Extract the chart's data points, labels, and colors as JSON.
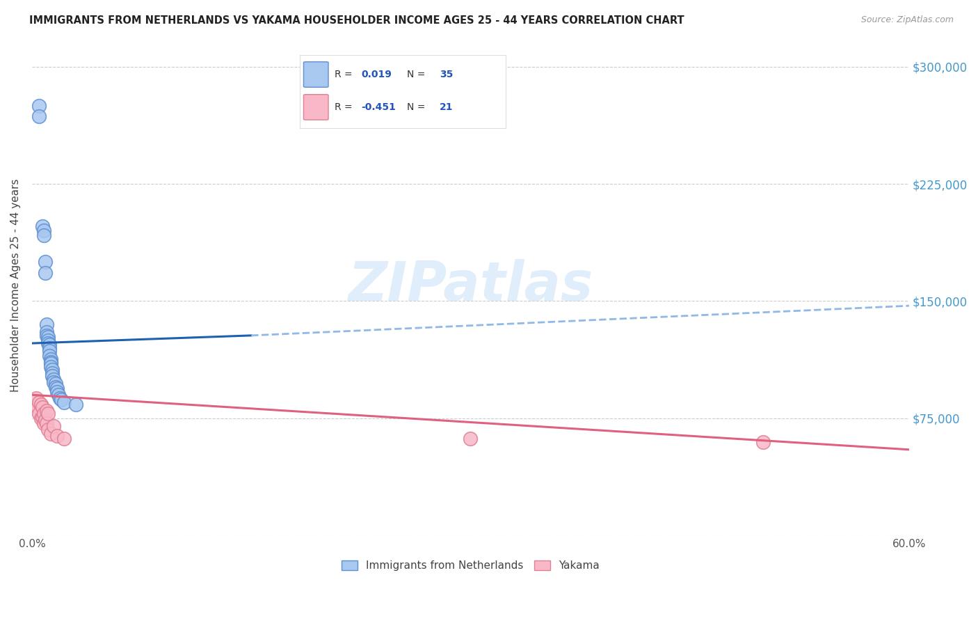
{
  "title": "IMMIGRANTS FROM NETHERLANDS VS YAKAMA HOUSEHOLDER INCOME AGES 25 - 44 YEARS CORRELATION CHART",
  "source": "Source: ZipAtlas.com",
  "ylabel": "Householder Income Ages 25 - 44 years",
  "xlim": [
    0.0,
    0.6
  ],
  "ylim": [
    0,
    320000
  ],
  "yticks": [
    0,
    75000,
    150000,
    225000,
    300000
  ],
  "ytick_labels_right": [
    "",
    "$75,000",
    "$150,000",
    "$225,000",
    "$300,000"
  ],
  "xticks": [
    0.0,
    0.1,
    0.2,
    0.3,
    0.4,
    0.5,
    0.6
  ],
  "xtick_labels": [
    "0.0%",
    "",
    "",
    "",
    "",
    "",
    "60.0%"
  ],
  "netherlands_color": "#A8C8F0",
  "yakama_color": "#F8B8C8",
  "netherlands_edge": "#6090D0",
  "yakama_edge": "#E08090",
  "netherlands_line_color": "#2060B0",
  "yakama_line_color": "#E06080",
  "trendline_dash_color": "#90B8E8",
  "background_color": "#FFFFFF",
  "grid_color": "#CCCCCC",
  "watermark": "ZIPatlas",
  "nl_legend_label": "R =  0.019   N = 35",
  "yk_legend_label": "R = -0.451   N = 21",
  "netherlands_x": [
    0.005,
    0.005,
    0.007,
    0.008,
    0.008,
    0.009,
    0.009,
    0.01,
    0.01,
    0.01,
    0.011,
    0.011,
    0.011,
    0.012,
    0.012,
    0.012,
    0.012,
    0.013,
    0.013,
    0.013,
    0.013,
    0.014,
    0.014,
    0.014,
    0.015,
    0.015,
    0.016,
    0.016,
    0.017,
    0.017,
    0.018,
    0.019,
    0.02,
    0.022,
    0.03
  ],
  "netherlands_y": [
    275000,
    268000,
    198000,
    195000,
    192000,
    175000,
    168000,
    135000,
    130000,
    128000,
    127000,
    125000,
    123000,
    122000,
    120000,
    118000,
    115000,
    113000,
    111000,
    110000,
    108000,
    106000,
    104000,
    102000,
    100000,
    98000,
    97000,
    95000,
    94000,
    92000,
    90000,
    88000,
    87000,
    85000,
    84000
  ],
  "yakama_x": [
    0.003,
    0.004,
    0.005,
    0.005,
    0.006,
    0.006,
    0.007,
    0.007,
    0.008,
    0.008,
    0.009,
    0.01,
    0.01,
    0.011,
    0.011,
    0.013,
    0.015,
    0.017,
    0.022,
    0.3,
    0.5
  ],
  "yakama_y": [
    88000,
    82000,
    85000,
    78000,
    84000,
    75000,
    82000,
    76000,
    78000,
    72000,
    74000,
    80000,
    72000,
    78000,
    68000,
    65000,
    70000,
    64000,
    62000,
    62000,
    60000
  ],
  "nl_trend_x0": 0.0,
  "nl_trend_y0": 123000,
  "nl_trend_x1": 0.15,
  "nl_trend_y1": 128000,
  "nl_trend_xdash0": 0.15,
  "nl_trend_ydash0": 128000,
  "nl_trend_xdash1": 0.6,
  "nl_trend_ydash1": 147000,
  "yk_trend_x0": 0.0,
  "yk_trend_y0": 90000,
  "yk_trend_x1": 0.6,
  "yk_trend_y1": 55000
}
